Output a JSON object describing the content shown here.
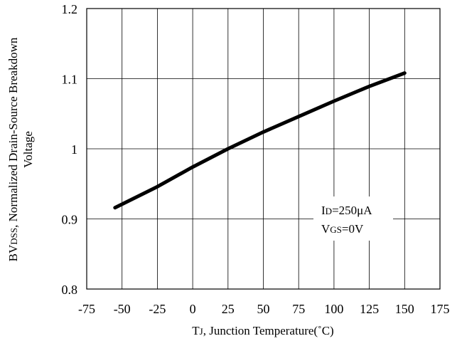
{
  "chart_data": {
    "type": "line",
    "xlabel_main": "T",
    "xlabel_sub": "J",
    "xlabel_rest": ", Junction Temperature(˚C)",
    "ylabel_line1_main": "BV",
    "ylabel_line1_sub": "DSS",
    "ylabel_line1_rest": ", Normalized Drain-Source Breakdown",
    "ylabel_line2": "Voltage",
    "xlim": [
      -75,
      175
    ],
    "ylim": [
      0.8,
      1.2
    ],
    "x_ticks": [
      -75,
      -50,
      -25,
      0,
      25,
      50,
      75,
      100,
      125,
      150,
      175
    ],
    "y_ticks": [
      0.8,
      0.9,
      1,
      1.1,
      1.2
    ],
    "y_tick_labels": [
      "0.8",
      "0.9",
      "1",
      "1.1",
      "1.2"
    ],
    "grid": true,
    "series": [
      {
        "x": [
          -55,
          -25,
          0,
          25,
          50,
          75,
          100,
          125,
          150
        ],
        "y": [
          0.916,
          0.946,
          0.974,
          1.0,
          1.024,
          1.046,
          1.068,
          1.089,
          1.108
        ]
      }
    ],
    "annotation": {
      "line1_main": "I",
      "line1_sub": "D",
      "line1_rest": "=250μA",
      "line2_main": "V",
      "line2_sub": "GS",
      "line2_rest": "=0V"
    }
  }
}
